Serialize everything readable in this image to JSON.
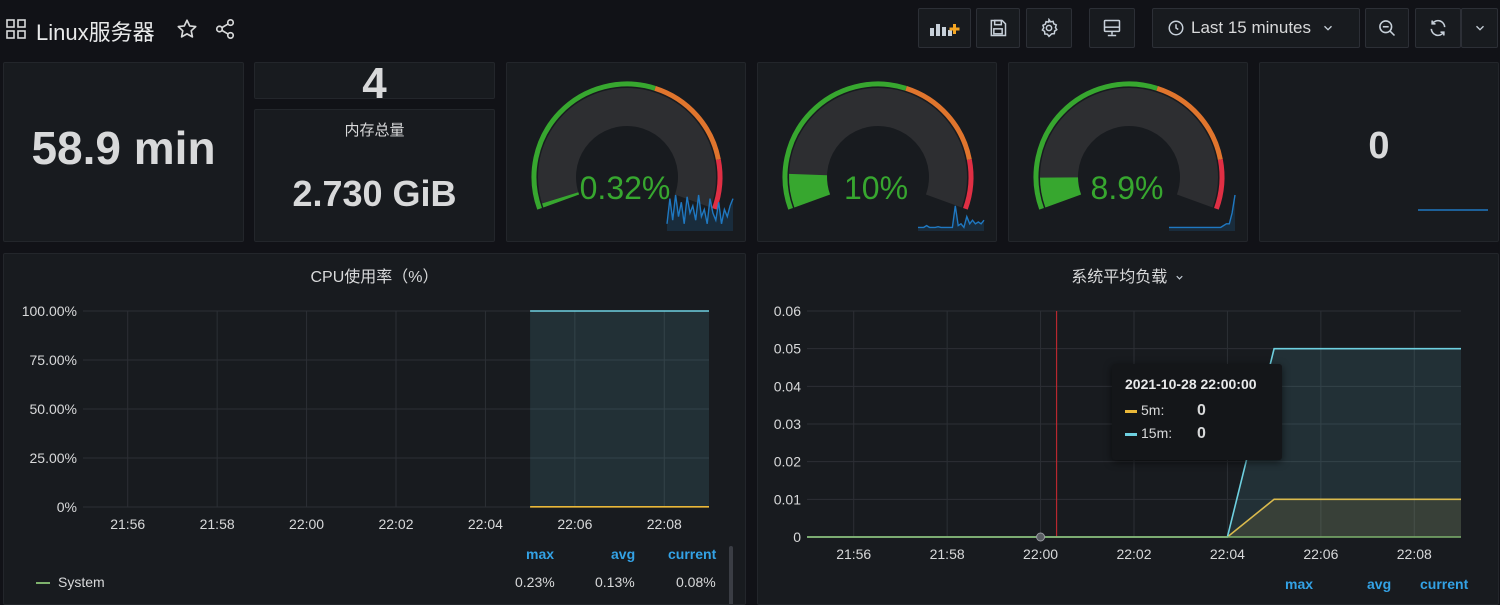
{
  "topbar": {
    "title": "Linux服务器",
    "time_range": "Last 15 minutes"
  },
  "stats": {
    "uptime": "58.9 min",
    "cpu_cores": "4",
    "memory_title": "内存总量",
    "memory_value": "2.730 GiB",
    "right_value": "0"
  },
  "gauges": [
    {
      "value_text": "0.32%",
      "value": 0.0032,
      "spark": [
        0.2,
        0.9,
        0.3,
        1.0,
        0.4,
        0.8,
        0.2,
        0.95,
        0.5,
        0.7,
        0.3,
        1.0,
        0.4,
        0.6,
        0.2,
        0.9,
        0.5,
        0.3,
        0.8,
        0.2,
        0.6,
        0.4,
        0.7,
        0.9
      ]
    },
    {
      "value_text": "10%",
      "value": 0.1,
      "spark": [
        0.1,
        0.1,
        0.1,
        0.15,
        0.1,
        0.1,
        0.1,
        0.12,
        0.1,
        0.1,
        0.1,
        0.1,
        0.1,
        0.7,
        0.15,
        0.2,
        0.1,
        0.4,
        0.2,
        0.3,
        0.2,
        0.25,
        0.2,
        0.3
      ]
    },
    {
      "value_text": "8.9%",
      "value": 0.089,
      "spark": [
        0.1,
        0.1,
        0.1,
        0.1,
        0.1,
        0.1,
        0.1,
        0.1,
        0.1,
        0.1,
        0.1,
        0.1,
        0.1,
        0.1,
        0.1,
        0.1,
        0.1,
        0.1,
        0.1,
        0.15,
        0.2,
        0.2,
        0.5,
        1.0
      ]
    }
  ],
  "cpu_panel": {
    "title": "CPU使用率（%）",
    "legend_headers": [
      "max",
      "avg",
      "current"
    ],
    "legend_rows": [
      {
        "name": "System",
        "max": "0.23%",
        "avg": "0.13%",
        "current": "0.08%",
        "color": "#7eb26d"
      }
    ]
  },
  "load_panel": {
    "title": "系统平均负载",
    "legend_headers": [
      "max",
      "avg",
      "current"
    ],
    "tooltip": {
      "time": "2021-10-28 22:00:00",
      "rows": [
        {
          "name": "5m:",
          "value": "0",
          "color": "#eab839"
        },
        {
          "name": "15m:",
          "value": "0",
          "color": "#6ed0e0"
        }
      ]
    }
  },
  "chart_data": [
    {
      "type": "line",
      "title": "CPU使用率（%）",
      "x": [
        "21:55",
        "21:56",
        "21:57",
        "21:58",
        "21:59",
        "22:00",
        "22:01",
        "22:02",
        "22:03",
        "22:04",
        "22:05",
        "22:06",
        "22:07",
        "22:08",
        "22:09"
      ],
      "x_ticks": [
        "21:56",
        "21:58",
        "22:00",
        "22:02",
        "22:04",
        "22:06",
        "22:08"
      ],
      "y_ticks": [
        "0%",
        "25.00%",
        "50.00%",
        "75.00%",
        "100.00%"
      ],
      "ylim": [
        0,
        100
      ],
      "series": [
        {
          "values": [
            null,
            null,
            null,
            null,
            null,
            null,
            null,
            null,
            null,
            null,
            100,
            100,
            100,
            100,
            100
          ],
          "color": "#6ed0e0"
        },
        {
          "values": [
            null,
            null,
            null,
            null,
            null,
            null,
            null,
            null,
            null,
            null,
            0.08,
            0.08,
            0.08,
            0.08,
            0.08
          ],
          "color": "#eab839"
        }
      ],
      "grid": true
    },
    {
      "type": "line",
      "title": "系统平均负载",
      "x": [
        "21:55",
        "21:56",
        "21:57",
        "21:58",
        "21:59",
        "22:00",
        "22:01",
        "22:02",
        "22:03",
        "22:04",
        "22:05",
        "22:06",
        "22:07",
        "22:08",
        "22:09"
      ],
      "x_ticks": [
        "21:56",
        "21:58",
        "22:00",
        "22:02",
        "22:04",
        "22:06",
        "22:08"
      ],
      "y_ticks": [
        "0",
        "0.01",
        "0.02",
        "0.03",
        "0.04",
        "0.05",
        "0.06"
      ],
      "ylim": [
        0,
        0.06
      ],
      "series": [
        {
          "name": "5m",
          "values": [
            0,
            0,
            0,
            0,
            0,
            0,
            0,
            0,
            0,
            0,
            0.01,
            0.01,
            0.01,
            0.01,
            0.01
          ],
          "color": "#eab839"
        },
        {
          "name": "15m",
          "values": [
            0,
            0,
            0,
            0,
            0,
            0,
            0,
            0,
            0,
            0,
            0.05,
            0.05,
            0.05,
            0.05,
            0.05
          ],
          "color": "#6ed0e0"
        },
        {
          "values": [
            0,
            0,
            0,
            0,
            0,
            0,
            0,
            0,
            0,
            0,
            0,
            0,
            0,
            0,
            0
          ],
          "color": "#7eb26d"
        }
      ],
      "grid": true
    }
  ]
}
